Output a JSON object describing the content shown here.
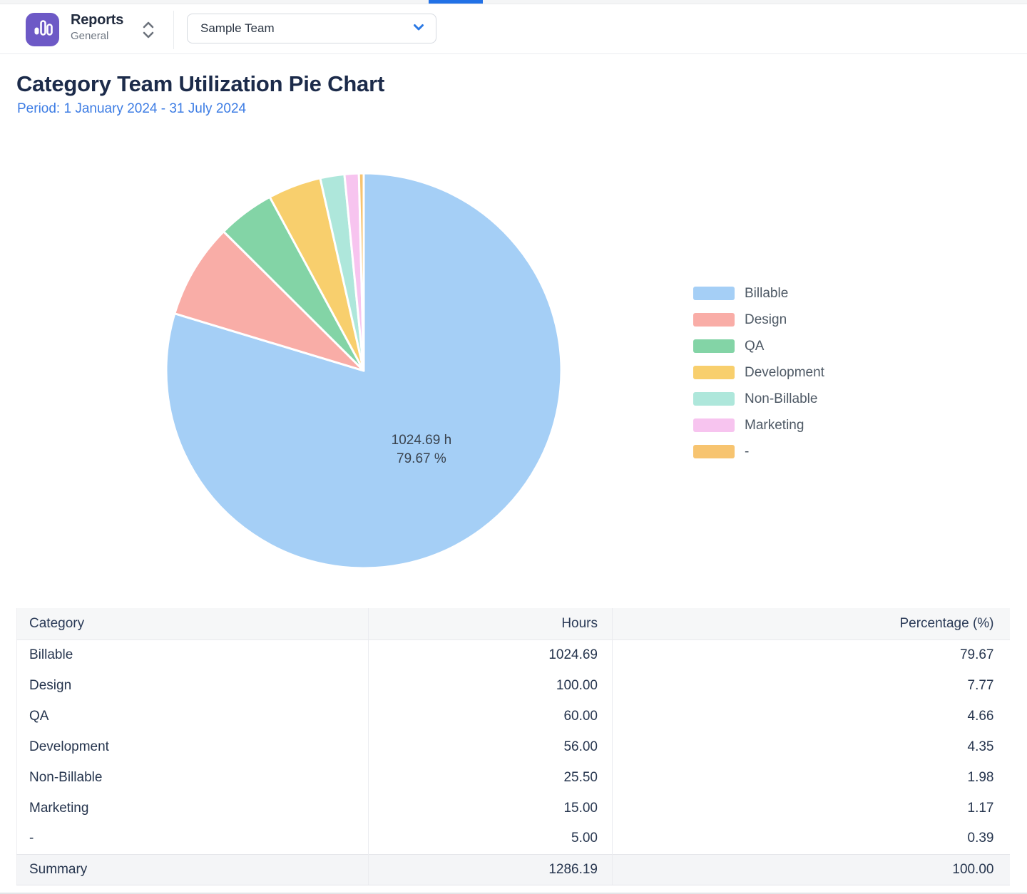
{
  "colors": {
    "accent_blue": "#2271E6",
    "period_text": "#3C7CE4",
    "app_icon_bg": "#6D59C6",
    "legend_text": "#4E5965",
    "table_text": "#26354E"
  },
  "icons": {
    "app": "bar-chart-icon",
    "app_switcher": "up-down-chevrons-icon",
    "team_selector": "chevron-down-icon"
  },
  "top_nav": {
    "app": {
      "title": "Reports",
      "subtitle": "General"
    },
    "team_selector": {
      "value": "Sample Team"
    }
  },
  "page": {
    "title": "Category Team Utilization Pie Chart",
    "period": "Period: 1 January 2024 - 31 July 2024"
  },
  "chart_data": {
    "type": "pie",
    "title": "Category Team Utilization Pie Chart",
    "subtitle": "Period: 1 January 2024 - 31 July 2024",
    "unit": "h",
    "start_angle_deg": 0,
    "direction": "clockwise",
    "legend_position": "right",
    "series": [
      {
        "name": "Billable",
        "hours": 1024.69,
        "percent": 79.67,
        "color": "#A5CFF6"
      },
      {
        "name": "Design",
        "hours": 100.0,
        "percent": 7.77,
        "color": "#F9ADA7"
      },
      {
        "name": "QA",
        "hours": 60.0,
        "percent": 4.66,
        "color": "#83D4A6"
      },
      {
        "name": "Development",
        "hours": 56.0,
        "percent": 4.35,
        "color": "#F8CF6D"
      },
      {
        "name": "Non-Billable",
        "hours": 25.5,
        "percent": 1.98,
        "color": "#AEE7DB"
      },
      {
        "name": "Marketing",
        "hours": 15.0,
        "percent": 1.17,
        "color": "#F7C4EF"
      },
      {
        "name": "-",
        "hours": 5.0,
        "percent": 0.39,
        "color": "#F7C470"
      }
    ],
    "center_label": {
      "line1": "1024.69 h",
      "line2": "79.67 %"
    }
  },
  "table": {
    "columns": [
      "Category",
      "Hours",
      "Percentage (%)"
    ],
    "rows": [
      [
        "Billable",
        "1024.69",
        "79.67"
      ],
      [
        "Design",
        "100.00",
        "7.77"
      ],
      [
        "QA",
        "60.00",
        "4.66"
      ],
      [
        "Development",
        "56.00",
        "4.35"
      ],
      [
        "Non-Billable",
        "25.50",
        "1.98"
      ],
      [
        "Marketing",
        "15.00",
        "1.17"
      ],
      [
        "-",
        "5.00",
        "0.39"
      ]
    ],
    "summary": [
      "Summary",
      "1286.19",
      "100.00"
    ]
  }
}
